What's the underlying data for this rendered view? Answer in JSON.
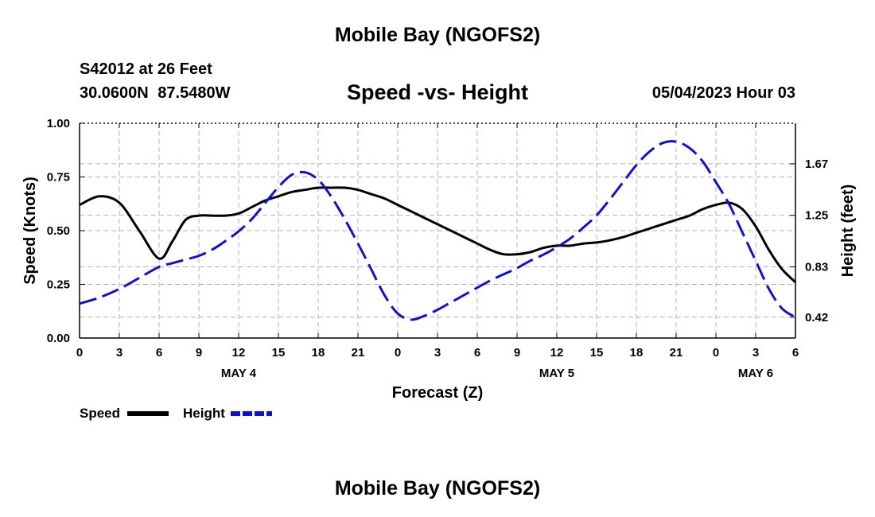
{
  "header": {
    "title": "Mobile Bay (NGOFS2)",
    "station": "S42012 at 26 Feet",
    "coords": "30.0600N 87.5480W",
    "chart_title": "Speed -vs- Height",
    "datetime": "05/04/2023 Hour 03"
  },
  "footer": {
    "title": "Mobile Bay (NGOFS2)"
  },
  "legend": {
    "speed_label": "Speed",
    "height_label": "Height"
  },
  "colors": {
    "speed": "#000000",
    "height": "#1010d0",
    "grid": "#b0b0b0"
  },
  "chart_data": {
    "type": "line",
    "xlabel": "Forecast (Z)",
    "ylabel": "Speed (Knots)",
    "y2label": "Height (feet)",
    "x_ticks": [
      "0",
      "3",
      "6",
      "9",
      "12",
      "15",
      "18",
      "21",
      "0",
      "3",
      "6",
      "9",
      "12",
      "15",
      "18",
      "21",
      "0",
      "3",
      "6"
    ],
    "day_labels": [
      {
        "label": "MAY 4",
        "at_hour": 12
      },
      {
        "label": "MAY 5",
        "at_hour": 36
      },
      {
        "label": "MAY 6",
        "at_hour": 51
      }
    ],
    "xlim": [
      0,
      54
    ],
    "ylim": [
      0,
      1.0
    ],
    "y_ticks": [
      "0.00",
      "0.25",
      "0.50",
      "0.75",
      "1.00"
    ],
    "y2lim": [
      0.25,
      2.0
    ],
    "y2_ticks": [
      "0.42",
      "0.83",
      "1.25",
      "1.67"
    ],
    "grid": true,
    "legend_position": "bottom-left",
    "series": [
      {
        "name": "Speed",
        "axis": "left",
        "style": "solid",
        "x": [
          0,
          1.5,
          3,
          4.5,
          6,
          7,
          8,
          9,
          10,
          11,
          12,
          13,
          14,
          15,
          16,
          17,
          18,
          19,
          20,
          21,
          22,
          23,
          24,
          25,
          26,
          27,
          28,
          29,
          30,
          31,
          32,
          33,
          34,
          35,
          36,
          37,
          38,
          39,
          40,
          41,
          42,
          43,
          44,
          45,
          46,
          47,
          48,
          49,
          50,
          51,
          52,
          53,
          54
        ],
        "y": [
          0.62,
          0.66,
          0.63,
          0.5,
          0.37,
          0.45,
          0.55,
          0.57,
          0.57,
          0.57,
          0.58,
          0.61,
          0.64,
          0.66,
          0.68,
          0.69,
          0.7,
          0.7,
          0.7,
          0.69,
          0.67,
          0.65,
          0.62,
          0.59,
          0.56,
          0.53,
          0.5,
          0.47,
          0.44,
          0.41,
          0.39,
          0.39,
          0.4,
          0.42,
          0.43,
          0.43,
          0.44,
          0.445,
          0.455,
          0.47,
          0.49,
          0.51,
          0.53,
          0.55,
          0.57,
          0.6,
          0.62,
          0.63,
          0.6,
          0.52,
          0.41,
          0.32,
          0.26
        ]
      },
      {
        "name": "Height",
        "axis": "right",
        "style": "dashed",
        "x": [
          0,
          1.5,
          3,
          4.5,
          6,
          7,
          8,
          9,
          10,
          11,
          12,
          13,
          14,
          15,
          16,
          17,
          18,
          19,
          20,
          21,
          22,
          23,
          24,
          25,
          26,
          27,
          28,
          29,
          30,
          31,
          32,
          33,
          34,
          35,
          36,
          37,
          38,
          39,
          40,
          41,
          42,
          43,
          44,
          45,
          46,
          47,
          48,
          49,
          50,
          51,
          52,
          53,
          54
        ],
        "y": [
          0.53,
          0.58,
          0.65,
          0.74,
          0.83,
          0.86,
          0.89,
          0.92,
          0.97,
          1.04,
          1.12,
          1.22,
          1.35,
          1.48,
          1.58,
          1.6,
          1.54,
          1.4,
          1.22,
          1.02,
          0.81,
          0.6,
          0.45,
          0.4,
          0.43,
          0.48,
          0.54,
          0.6,
          0.66,
          0.72,
          0.77,
          0.82,
          0.88,
          0.93,
          0.99,
          1.06,
          1.15,
          1.25,
          1.38,
          1.52,
          1.66,
          1.77,
          1.84,
          1.85,
          1.8,
          1.69,
          1.52,
          1.34,
          1.11,
          0.88,
          0.65,
          0.49,
          0.42
        ]
      }
    ]
  }
}
